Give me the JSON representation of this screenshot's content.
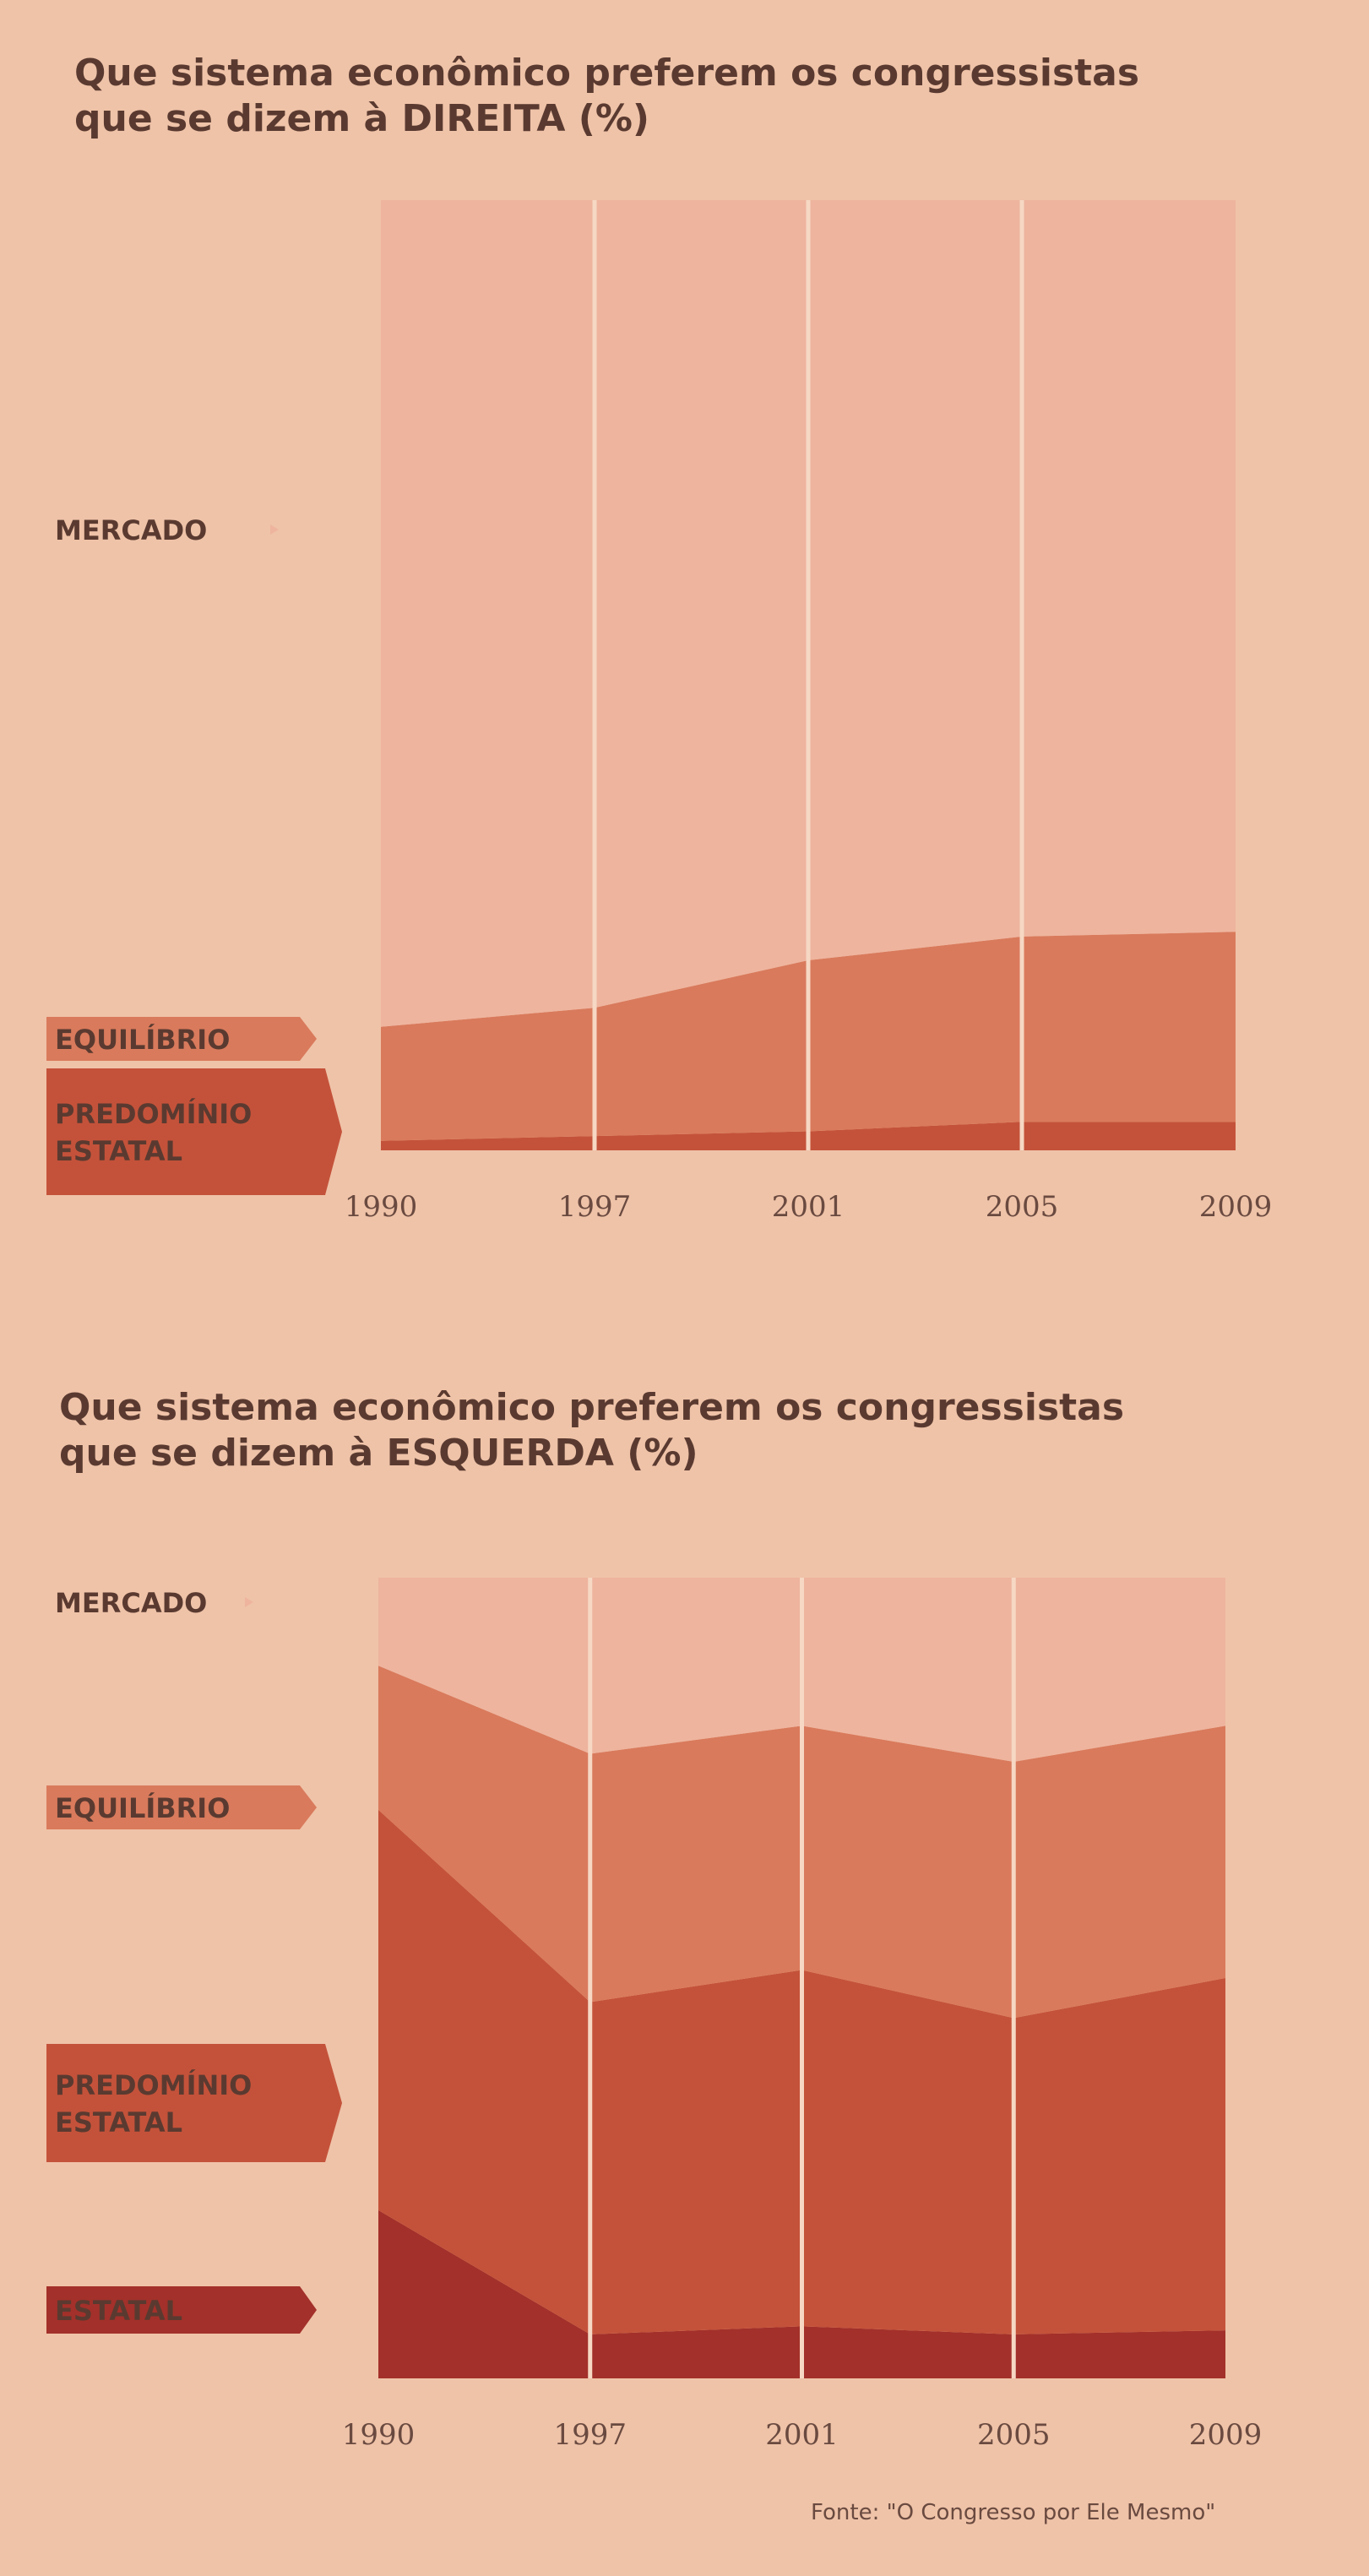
{
  "source": "Fonte: \"O Congresso por Ele Mesmo\"",
  "colors": {
    "mercado": "#eeb49e",
    "equilibrio": "#d97a5c",
    "predominio": "#c4523a",
    "estatal": "#a3302a",
    "label_text": "#5a3a30"
  },
  "chart_data": [
    {
      "type": "area",
      "stacked": true,
      "title_line1": "Que sistema econômico preferem os congressistas",
      "title_line2": "que se dizem à DIREITA (%)",
      "categories": [
        "1990",
        "1997",
        "2001",
        "2005",
        "2009"
      ],
      "ylim": [
        0,
        100
      ],
      "series": [
        {
          "name": "PREDOMÍNIO ESTATAL",
          "key": "predominio",
          "values": [
            1,
            1.5,
            2,
            3,
            3
          ]
        },
        {
          "name": "EQUILÍBRIO",
          "key": "equilibrio",
          "values": [
            12,
            13.5,
            18,
            19.5,
            20
          ]
        },
        {
          "name": "MERCADO",
          "key": "mercado",
          "values": [
            87,
            85,
            80,
            77.5,
            77
          ]
        }
      ]
    },
    {
      "type": "area",
      "stacked": true,
      "title_line1": "Que sistema econômico preferem os congressistas",
      "title_line2": "que se dizem à ESQUERDA (%)",
      "categories": [
        "1990",
        "1997",
        "2001",
        "2005",
        "2009"
      ],
      "ylim": [
        0,
        100
      ],
      "series": [
        {
          "name": "ESTATAL",
          "key": "estatal",
          "values": [
            21,
            5.5,
            6.5,
            5.5,
            6
          ]
        },
        {
          "name": "PREDOMÍNIO ESTATAL",
          "key": "predominio",
          "values": [
            50,
            41.5,
            44.5,
            39.5,
            44
          ]
        },
        {
          "name": "EQUILÍBRIO",
          "key": "equilibrio",
          "values": [
            18,
            31,
            30.5,
            32,
            31.5
          ]
        },
        {
          "name": "MERCADO",
          "key": "mercado",
          "values": [
            11,
            22,
            18.5,
            23,
            18.5
          ]
        }
      ]
    }
  ]
}
